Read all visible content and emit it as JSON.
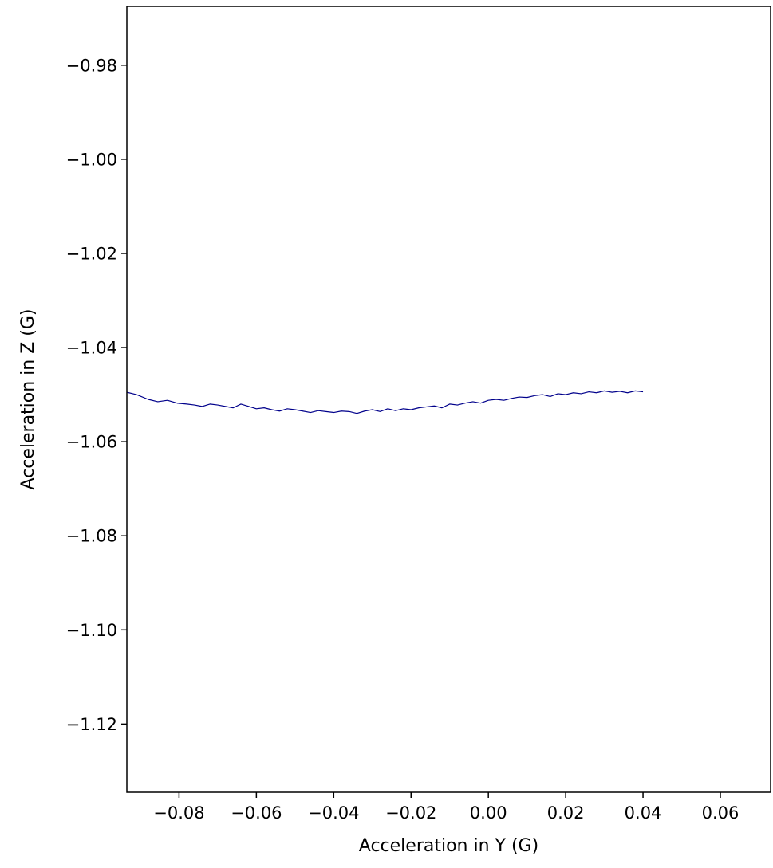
{
  "chart_data": {
    "type": "line",
    "title": "",
    "xlabel": "Acceleration in Y (G)",
    "ylabel": "Acceleration in Z (G)",
    "xlim": [
      -0.0935,
      0.073
    ],
    "ylim": [
      -1.1345,
      -0.9675
    ],
    "xticks": [
      -0.08,
      -0.06,
      -0.04,
      -0.02,
      0.0,
      0.02,
      0.04,
      0.06
    ],
    "xtick_labels": [
      "−0.08",
      "−0.06",
      "−0.04",
      "−0.02",
      "0.00",
      "0.02",
      "0.04",
      "0.06"
    ],
    "yticks": [
      -0.98,
      -1.0,
      -1.02,
      -1.04,
      -1.06,
      -1.08,
      -1.1,
      -1.12
    ],
    "ytick_labels": [
      "−0.98",
      "−1.00",
      "−1.02",
      "−1.04",
      "−1.06",
      "−1.08",
      "−1.10",
      "−1.12"
    ],
    "grid": false,
    "legend": null,
    "series": [
      {
        "color": "#00008b",
        "x": [
          -0.0935,
          -0.091,
          -0.088,
          -0.0855,
          -0.083,
          -0.0805,
          -0.078,
          -0.076,
          -0.074,
          -0.072,
          -0.07,
          -0.068,
          -0.066,
          -0.064,
          -0.062,
          -0.06,
          -0.058,
          -0.056,
          -0.054,
          -0.052,
          -0.05,
          -0.048,
          -0.046,
          -0.044,
          -0.042,
          -0.04,
          -0.038,
          -0.036,
          -0.034,
          -0.032,
          -0.03,
          -0.028,
          -0.026,
          -0.024,
          -0.022,
          -0.02,
          -0.018,
          -0.016,
          -0.014,
          -0.012,
          -0.01,
          -0.008,
          -0.006,
          -0.004,
          -0.002,
          0.0,
          0.002,
          0.004,
          0.006,
          0.008,
          0.01,
          0.012,
          0.014,
          0.016,
          0.018,
          0.02,
          0.022,
          0.024,
          0.026,
          0.028,
          0.03,
          0.032,
          0.034,
          0.036,
          0.038,
          0.04
        ],
        "y": [
          -1.0495,
          -1.05,
          -1.051,
          -1.0515,
          -1.0512,
          -1.0518,
          -1.052,
          -1.0522,
          -1.0525,
          -1.052,
          -1.0522,
          -1.0525,
          -1.0528,
          -1.052,
          -1.0525,
          -1.053,
          -1.0528,
          -1.0532,
          -1.0535,
          -1.053,
          -1.0532,
          -1.0535,
          -1.0538,
          -1.0534,
          -1.0536,
          -1.0538,
          -1.0535,
          -1.0536,
          -1.054,
          -1.0535,
          -1.0532,
          -1.0536,
          -1.053,
          -1.0534,
          -1.053,
          -1.0532,
          -1.0528,
          -1.0526,
          -1.0524,
          -1.0528,
          -1.052,
          -1.0522,
          -1.0518,
          -1.0515,
          -1.0518,
          -1.0512,
          -1.051,
          -1.0512,
          -1.0508,
          -1.0505,
          -1.0506,
          -1.0502,
          -1.05,
          -1.0504,
          -1.0498,
          -1.05,
          -1.0496,
          -1.0498,
          -1.0494,
          -1.0496,
          -1.0492,
          -1.0495,
          -1.0493,
          -1.0496,
          -1.0492,
          -1.0494
        ]
      }
    ]
  }
}
